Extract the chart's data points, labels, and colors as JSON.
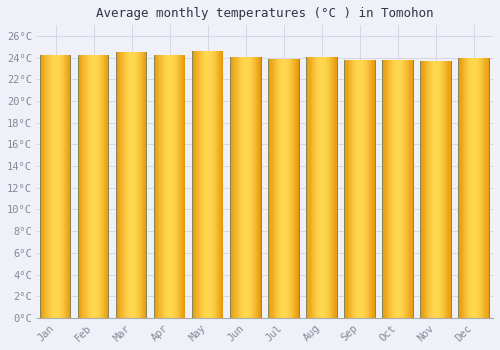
{
  "months": [
    "Jan",
    "Feb",
    "Mar",
    "Apr",
    "May",
    "Jun",
    "Jul",
    "Aug",
    "Sep",
    "Oct",
    "Nov",
    "Dec"
  ],
  "values": [
    24.3,
    24.3,
    24.5,
    24.3,
    24.6,
    24.1,
    23.9,
    24.1,
    23.8,
    23.8,
    23.7,
    24.0
  ],
  "bar_color_light": "#FFD060",
  "bar_color_mid": "#FFBE20",
  "bar_color_dark": "#E8960A",
  "bar_edge_color": "#888855",
  "background_color": "#F0F0F8",
  "plot_bg_color": "#F0F0F8",
  "grid_color": "#CCCCDD",
  "title": "Average monthly temperatures (°C ) in Tomohon",
  "title_fontsize": 9,
  "tick_label_color": "#888899",
  "ylim": [
    0,
    27
  ],
  "yticks": [
    0,
    2,
    4,
    6,
    8,
    10,
    12,
    14,
    16,
    18,
    20,
    22,
    24,
    26
  ]
}
